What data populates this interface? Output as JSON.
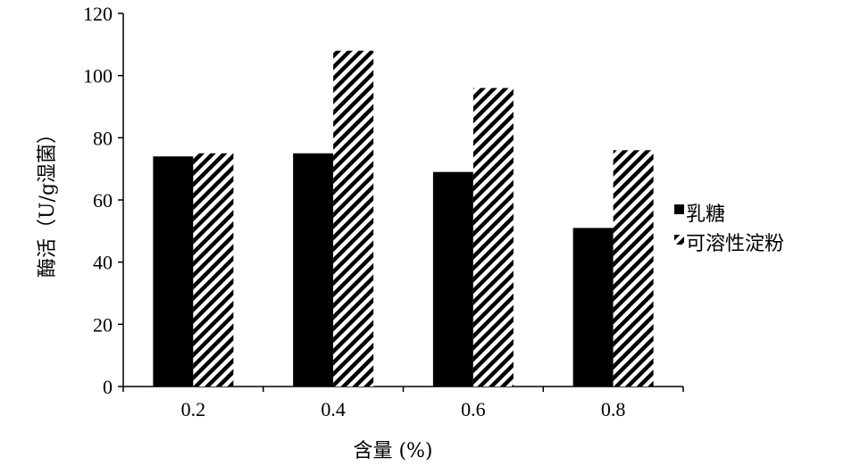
{
  "chart_data": {
    "type": "bar",
    "categories": [
      "0.2",
      "0.4",
      "0.6",
      "0.8"
    ],
    "series": [
      {
        "name": "乳糖",
        "values": [
          74,
          75,
          69,
          51
        ],
        "fill": "solid",
        "color": "#000000"
      },
      {
        "name": "可溶性淀粉",
        "values": [
          75,
          108,
          96,
          76
        ],
        "fill": "hatched",
        "color": "#000000"
      }
    ],
    "xlabel": "含量 (%)",
    "ylabel": "酶活（U/g湿菌）",
    "ylim": [
      0,
      120
    ],
    "yticks": [
      0,
      20,
      40,
      60,
      80,
      100,
      120
    ],
    "grid": false,
    "legend_position": "right"
  }
}
